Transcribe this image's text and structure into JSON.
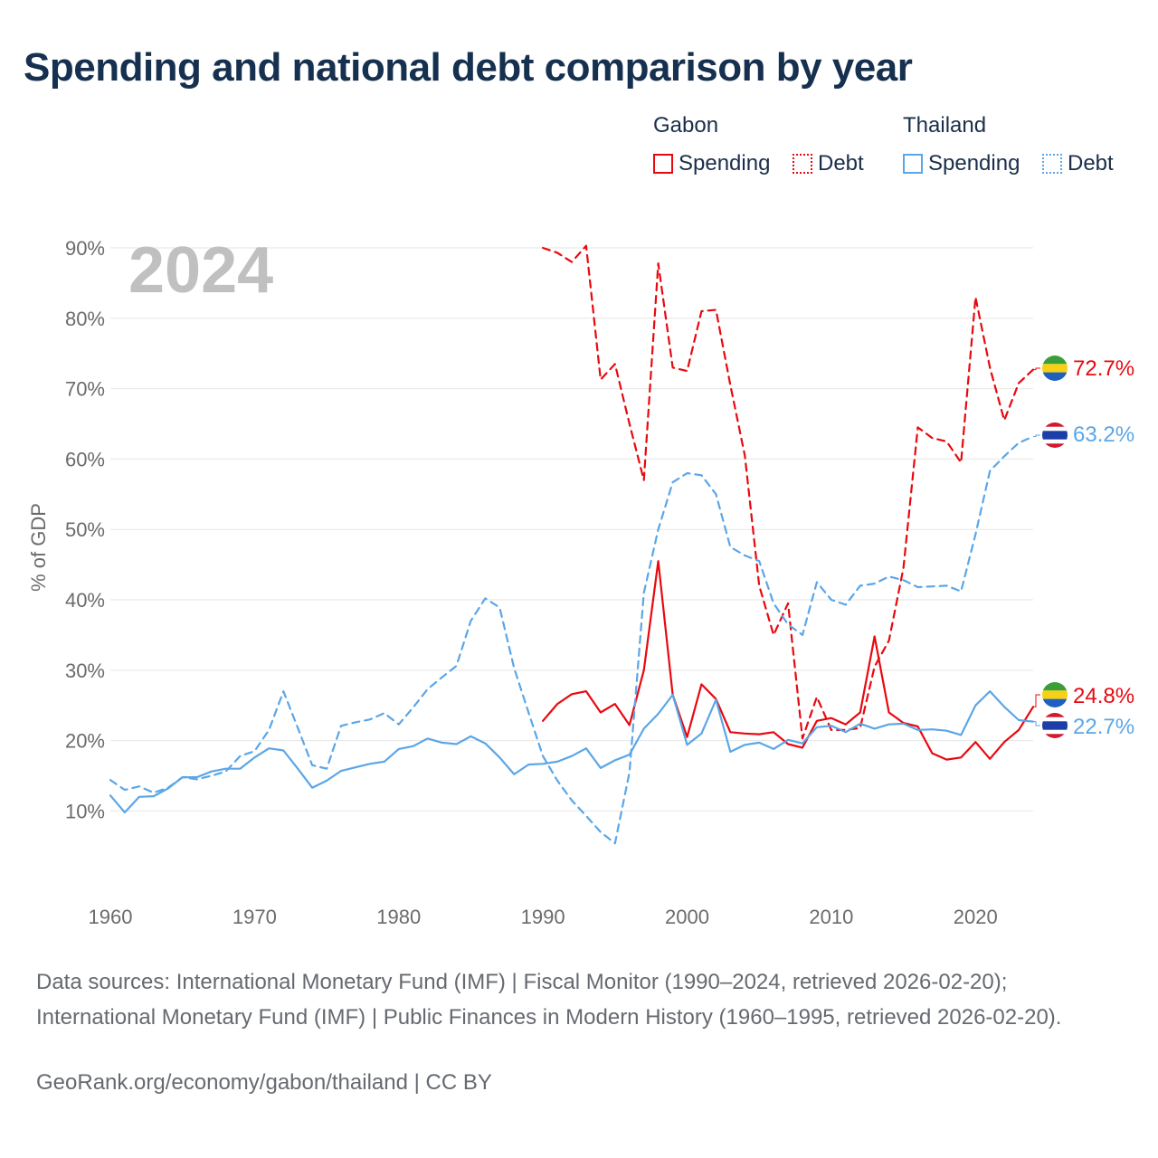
{
  "title": "Spending and national debt comparison by year",
  "legend": {
    "gabon_label": "Gabon",
    "thailand_label": "Thailand",
    "spending_label": "Spending",
    "debt_label": "Debt"
  },
  "colors": {
    "gabon": "#e8090f",
    "thailand": "#5aa6e8",
    "grid": "#e6e6e6",
    "axis_text": "#6b6b6b",
    "year_watermark": "#c0c0c0"
  },
  "source_text": "Data sources: International Monetary Fund (IMF) | Fiscal Monitor (1990–2024, retrieved 2026-02-20); International Monetary Fund (IMF) | Public Finances in Modern History (1960–1995, retrieved 2026-02-20).",
  "credit_text": "GeoRank.org/economy/gabon/thailand | CC BY",
  "chart_data": {
    "type": "line",
    "title": "Spending and national debt comparison by year",
    "year_label": "2024",
    "xlabel": "",
    "ylabel": "% of GDP",
    "xlim": [
      1960,
      2024
    ],
    "ylim": [
      0,
      90
    ],
    "x_ticks": [
      1960,
      1970,
      1980,
      1990,
      2000,
      2010,
      2020
    ],
    "y_ticks": [
      10,
      20,
      30,
      40,
      50,
      60,
      70,
      80,
      90
    ],
    "y_tick_labels": [
      "10%",
      "20%",
      "30%",
      "40%",
      "50%",
      "60%",
      "70%",
      "80%",
      "90%"
    ],
    "end_labels": {
      "gabon_debt": "72.7%",
      "thailand_debt": "63.2%",
      "gabon_spending": "24.8%",
      "thailand_spending": "22.7%"
    },
    "series": [
      {
        "name": "Gabon Spending",
        "country": "Gabon",
        "kind": "spending",
        "style": "solid",
        "start_year": 1990,
        "values": [
          22.8,
          25.2,
          26.6,
          27.0,
          24.0,
          25.2,
          22.2,
          30.0,
          45.5,
          26.5,
          20.5,
          28.0,
          25.9,
          21.2,
          21.0,
          20.9,
          21.2,
          19.5,
          19.0,
          22.8,
          23.2,
          22.3,
          24.0,
          34.8,
          24.0,
          22.5,
          22.0,
          18.2,
          17.3,
          17.6,
          19.8,
          17.4,
          19.8,
          21.5,
          24.8
        ]
      },
      {
        "name": "Gabon Debt",
        "country": "Gabon",
        "kind": "debt",
        "style": "dashed",
        "start_year": 1990,
        "values": [
          90.0,
          89.3,
          88.0,
          90.3,
          71.3,
          73.5,
          65.0,
          57.0,
          87.8,
          73.0,
          72.5,
          81.0,
          81.2,
          70.5,
          60.5,
          42.0,
          35.0,
          39.5,
          20.3,
          26.2,
          21.5,
          21.5,
          21.8,
          30.5,
          34.2,
          44.5,
          64.5,
          63.0,
          62.5,
          59.5,
          83.0,
          73.0,
          65.5,
          70.8,
          72.7
        ]
      },
      {
        "name": "Thailand Spending",
        "country": "Thailand",
        "kind": "spending",
        "style": "solid",
        "start_year": 1960,
        "values": [
          12.2,
          9.8,
          12.0,
          12.1,
          13.2,
          14.8,
          14.8,
          15.6,
          16.0,
          16.0,
          17.6,
          18.9,
          18.6,
          16.0,
          13.3,
          14.3,
          15.7,
          16.2,
          16.7,
          17.0,
          18.8,
          19.2,
          20.3,
          19.7,
          19.5,
          20.6,
          19.6,
          17.6,
          15.2,
          16.6,
          16.7,
          17.0,
          17.8,
          18.9,
          16.1,
          17.2,
          18.0,
          21.7,
          23.8,
          26.5,
          19.4,
          21.0,
          25.8,
          18.4,
          19.4,
          19.7,
          18.8,
          20.1,
          19.6,
          21.9,
          22.1,
          21.2,
          22.4,
          21.7,
          22.3,
          22.4,
          21.5,
          21.6,
          21.4,
          20.8,
          25.0,
          27.0,
          24.8,
          22.9,
          22.7
        ]
      },
      {
        "name": "Thailand Debt",
        "country": "Thailand",
        "kind": "debt",
        "style": "dashed",
        "start_year": 1960,
        "values": [
          14.4,
          13.0,
          13.5,
          12.6,
          13.3,
          14.8,
          14.5,
          15.0,
          15.6,
          17.8,
          18.5,
          21.5,
          27.0,
          21.8,
          16.5,
          16.0,
          22.1,
          22.6,
          23.0,
          23.9,
          22.3,
          24.7,
          27.3,
          29.0,
          30.6,
          37.0,
          40.2,
          38.9,
          30.3,
          24.0,
          17.8,
          14.3,
          11.5,
          9.3,
          7.0,
          5.4,
          15.5,
          41.0,
          50.0,
          56.7,
          58.0,
          57.7,
          55.0,
          47.5,
          46.3,
          45.5,
          39.5,
          36.5,
          35.0,
          42.5,
          40.0,
          39.3,
          42.0,
          42.3,
          43.3,
          42.8,
          41.8,
          41.9,
          42.0,
          41.2,
          49.3,
          58.3,
          60.4,
          62.3,
          63.2
        ]
      }
    ]
  }
}
